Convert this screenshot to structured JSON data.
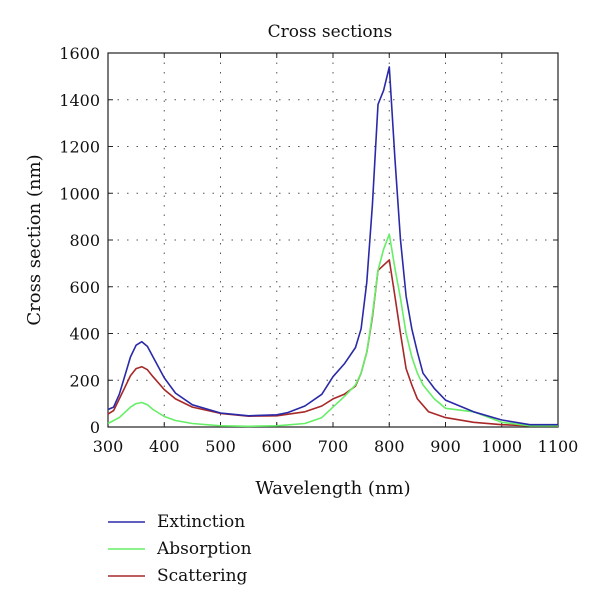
{
  "chart_data": {
    "type": "line",
    "title": "Cross sections",
    "xlabel": "Wavelength (nm)",
    "ylabel": "Cross section (nm)",
    "xlim": [
      300,
      1100
    ],
    "ylim": [
      0,
      1600
    ],
    "xticks": [
      300,
      400,
      500,
      600,
      700,
      800,
      900,
      1000,
      1100
    ],
    "yticks": [
      0,
      200,
      400,
      600,
      800,
      1000,
      1200,
      1400,
      1600
    ],
    "xtick_labels": [
      "300",
      "400",
      "500",
      "600",
      "700",
      "800",
      "900",
      "1000",
      "1100"
    ],
    "ytick_labels": [
      "0",
      "200",
      "400",
      "600",
      "800",
      "1000",
      "1200",
      "1400",
      "1600"
    ],
    "grid": true,
    "legend_position": "below-plot-left",
    "series": [
      {
        "name": "Extinction",
        "color": "#2a2aa8",
        "points": [
          [
            300,
            75
          ],
          [
            310,
            85
          ],
          [
            320,
            140
          ],
          [
            330,
            220
          ],
          [
            340,
            300
          ],
          [
            350,
            350
          ],
          [
            360,
            365
          ],
          [
            370,
            345
          ],
          [
            380,
            300
          ],
          [
            400,
            210
          ],
          [
            420,
            145
          ],
          [
            450,
            95
          ],
          [
            500,
            60
          ],
          [
            550,
            48
          ],
          [
            600,
            52
          ],
          [
            620,
            62
          ],
          [
            650,
            90
          ],
          [
            680,
            140
          ],
          [
            700,
            215
          ],
          [
            720,
            270
          ],
          [
            740,
            340
          ],
          [
            750,
            420
          ],
          [
            760,
            620
          ],
          [
            770,
            950
          ],
          [
            780,
            1380
          ],
          [
            790,
            1440
          ],
          [
            800,
            1540
          ],
          [
            810,
            1150
          ],
          [
            820,
            800
          ],
          [
            830,
            560
          ],
          [
            840,
            420
          ],
          [
            850,
            320
          ],
          [
            860,
            230
          ],
          [
            880,
            165
          ],
          [
            900,
            115
          ],
          [
            950,
            65
          ],
          [
            1000,
            30
          ],
          [
            1050,
            10
          ],
          [
            1100,
            10
          ]
        ]
      },
      {
        "name": "Absorption",
        "color": "#66ee66",
        "points": [
          [
            300,
            15
          ],
          [
            320,
            40
          ],
          [
            340,
            85
          ],
          [
            350,
            100
          ],
          [
            360,
            105
          ],
          [
            370,
            95
          ],
          [
            380,
            75
          ],
          [
            400,
            45
          ],
          [
            420,
            28
          ],
          [
            450,
            15
          ],
          [
            500,
            5
          ],
          [
            550,
            3
          ],
          [
            600,
            5
          ],
          [
            650,
            15
          ],
          [
            680,
            40
          ],
          [
            700,
            85
          ],
          [
            720,
            130
          ],
          [
            740,
            180
          ],
          [
            750,
            230
          ],
          [
            760,
            320
          ],
          [
            770,
            480
          ],
          [
            780,
            670
          ],
          [
            790,
            760
          ],
          [
            800,
            825
          ],
          [
            810,
            680
          ],
          [
            820,
            550
          ],
          [
            830,
            400
          ],
          [
            840,
            300
          ],
          [
            850,
            230
          ],
          [
            860,
            180
          ],
          [
            880,
            120
          ],
          [
            900,
            80
          ],
          [
            950,
            65
          ],
          [
            1000,
            20
          ],
          [
            1050,
            5
          ],
          [
            1100,
            5
          ]
        ]
      },
      {
        "name": "Scattering",
        "color": "#a82828",
        "points": [
          [
            300,
            55
          ],
          [
            310,
            70
          ],
          [
            320,
            120
          ],
          [
            330,
            170
          ],
          [
            340,
            220
          ],
          [
            350,
            250
          ],
          [
            360,
            258
          ],
          [
            370,
            245
          ],
          [
            380,
            215
          ],
          [
            400,
            160
          ],
          [
            420,
            120
          ],
          [
            450,
            85
          ],
          [
            500,
            58
          ],
          [
            550,
            46
          ],
          [
            600,
            48
          ],
          [
            650,
            65
          ],
          [
            680,
            90
          ],
          [
            700,
            120
          ],
          [
            720,
            140
          ],
          [
            740,
            175
          ],
          [
            750,
            230
          ],
          [
            760,
            320
          ],
          [
            770,
            470
          ],
          [
            780,
            670
          ],
          [
            800,
            715
          ],
          [
            810,
            560
          ],
          [
            820,
            400
          ],
          [
            830,
            250
          ],
          [
            840,
            180
          ],
          [
            850,
            120
          ],
          [
            870,
            65
          ],
          [
            900,
            40
          ],
          [
            950,
            20
          ],
          [
            1000,
            10
          ],
          [
            1050,
            5
          ],
          [
            1100,
            5
          ]
        ]
      }
    ]
  }
}
